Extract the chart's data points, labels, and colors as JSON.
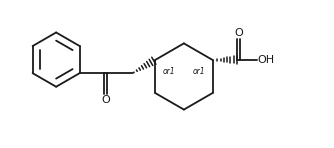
{
  "background": "#ffffff",
  "line_color": "#1a1a1a",
  "line_width": 1.3,
  "font_size": 7,
  "fig_width": 3.34,
  "fig_height": 1.48,
  "dpi": 100,
  "xlim": [
    0,
    10
  ],
  "ylim": [
    0,
    4.43
  ]
}
